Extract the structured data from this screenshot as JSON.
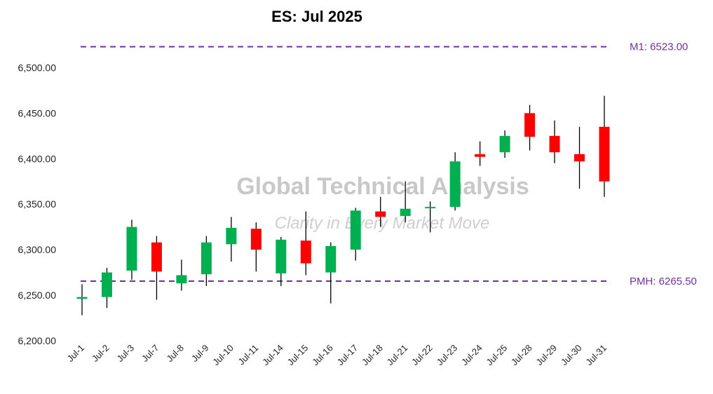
{
  "chart_data": {
    "type": "candlestick",
    "title": "ES: Jul 2025",
    "ylim": [
      6200,
      6525
    ],
    "y_ticks": [
      "6,200.00",
      "6,250.00",
      "6,300.00",
      "6,350.00",
      "6,400.00",
      "6,450.00",
      "6,500.00"
    ],
    "y_tick_values": [
      6200,
      6250,
      6300,
      6350,
      6400,
      6450,
      6500
    ],
    "grid": false,
    "colors": {
      "up": "#00b050",
      "down": "#ff0000",
      "wick": "#000000",
      "level": "#7030a0"
    },
    "categories": [
      "Jul-1",
      "Jul-2",
      "Jul-3",
      "Jul-7",
      "Jul-8",
      "Jul-9",
      "Jul-10",
      "Jul-11",
      "Jul-14",
      "Jul-15",
      "Jul-16",
      "Jul-17",
      "Jul-18",
      "Jul-21",
      "Jul-22",
      "Jul-23",
      "Jul-24",
      "Jul-25",
      "Jul-28",
      "Jul-29",
      "Jul-30",
      "Jul-31"
    ],
    "open": [
      6246,
      6248,
      6277,
      6308,
      6263,
      6273,
      6306,
      6323,
      6274,
      6310,
      6275,
      6300,
      6342,
      6337,
      6347,
      6347,
      6405,
      6407,
      6450,
      6425,
      6405,
      6435
    ],
    "high": [
      6262,
      6280,
      6333,
      6315,
      6289,
      6315,
      6336,
      6330,
      6314,
      6342,
      6308,
      6346,
      6358,
      6375,
      6353,
      6407,
      6419,
      6431,
      6459,
      6442,
      6435,
      6469
    ],
    "low": [
      6228,
      6236,
      6267,
      6245,
      6255,
      6260,
      6287,
      6276,
      6260,
      6272,
      6241,
      6288,
      6325,
      6330,
      6319,
      6343,
      6392,
      6401,
      6409,
      6395,
      6367,
      6358
    ],
    "close": [
      6248,
      6275,
      6325,
      6276,
      6272,
      6308,
      6324,
      6300,
      6311,
      6285,
      6304,
      6343,
      6336,
      6345,
      6347,
      6397,
      6402,
      6425,
      6424,
      6407,
      6397,
      6375
    ],
    "levels": [
      {
        "label": "M1: 6523.00",
        "value": 6523.0
      },
      {
        "label": "PMH: 6265.50",
        "value": 6265.5
      }
    ],
    "watermark": {
      "line1": "Global Technical Analysis",
      "line2": "Clarity in Every Market Move"
    }
  }
}
